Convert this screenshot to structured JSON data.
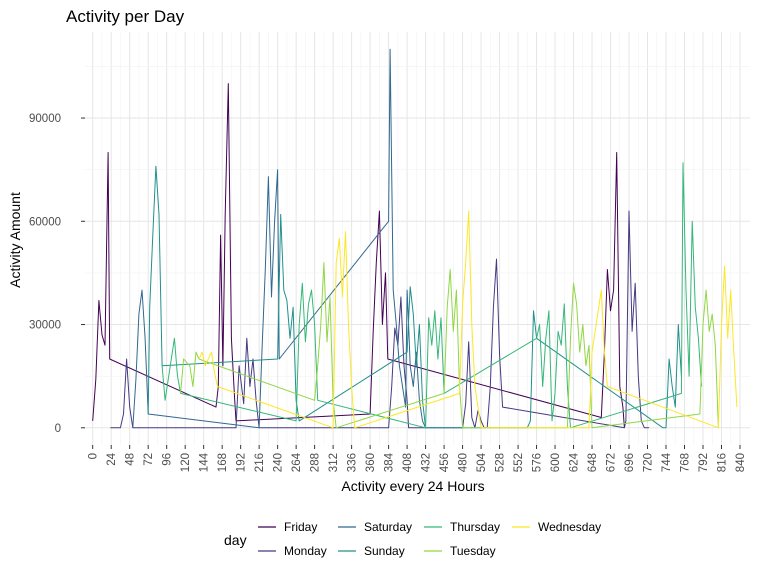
{
  "chart_data": {
    "type": "line",
    "title": "Activity per Day",
    "xlabel": "Activity every 24 Hours",
    "ylabel": "Activity Amount",
    "xlim": [
      -10,
      853
    ],
    "ylim": [
      -5000,
      115000
    ],
    "x_ticks": [
      0,
      24,
      48,
      72,
      96,
      120,
      144,
      168,
      192,
      216,
      240,
      264,
      288,
      312,
      336,
      360,
      384,
      408,
      432,
      456,
      480,
      504,
      528,
      552,
      576,
      600,
      624,
      648,
      672,
      696,
      720,
      744,
      768,
      792,
      816,
      840
    ],
    "y_ticks": [
      0,
      30000,
      60000,
      90000
    ],
    "y_tick_labels": [
      "0",
      "30000",
      "60000",
      "90000"
    ],
    "grid": true,
    "legend": {
      "title": "day",
      "position": "bottom",
      "entries": [
        "Friday",
        "Monday",
        "Saturday",
        "Sunday",
        "Thursday",
        "Tuesday",
        "Wednesday"
      ]
    },
    "series": [
      {
        "name": "Friday",
        "color": "#440154",
        "x": [
          0,
          4,
          8,
          12,
          16,
          20,
          22,
          160,
          163,
          166,
          169,
          172,
          176,
          180,
          184,
          186,
          360,
          364,
          368,
          372,
          376,
          380,
          383,
          660,
          664,
          668,
          672,
          676,
          680,
          684,
          688,
          690
        ],
        "values": [
          2000,
          14000,
          37000,
          27000,
          24000,
          80000,
          20000,
          6000,
          12000,
          56000,
          18000,
          62000,
          100000,
          26000,
          9000,
          2000,
          4000,
          28000,
          48000,
          63000,
          30000,
          45000,
          20000,
          3000,
          22000,
          46000,
          34000,
          40000,
          80000,
          12000,
          6000,
          0
        ]
      },
      {
        "name": "Monday",
        "color": "#443A83",
        "x": [
          23,
          28,
          36,
          40,
          44,
          48,
          52,
          186,
          190,
          196,
          200,
          204,
          208,
          212,
          216,
          384,
          388,
          392,
          396,
          400,
          404,
          408,
          410,
          480,
          484,
          488,
          492,
          496,
          500,
          504,
          508,
          512,
          516,
          520,
          524,
          528,
          532,
          690,
          692,
          696,
          700,
          704,
          708,
          712,
          716,
          720,
          722
        ],
        "values": [
          0,
          0,
          0,
          4000,
          20000,
          6000,
          0,
          0,
          18000,
          7000,
          26000,
          12000,
          20000,
          8000,
          0,
          0,
          12000,
          29000,
          24000,
          38000,
          18000,
          8000,
          0,
          0,
          7000,
          25000,
          3000,
          0,
          5000,
          2000,
          0,
          0,
          12000,
          35000,
          49000,
          21000,
          6000,
          0,
          2000,
          63000,
          28000,
          42000,
          15000,
          2000,
          0,
          0,
          0
        ],
        "extra": []
      },
      {
        "name": "Saturday",
        "color": "#31688E",
        "x": [
          52,
          56,
          60,
          64,
          68,
          72,
          216,
          220,
          224,
          228,
          232,
          236,
          240,
          242,
          384,
          386,
          390,
          394,
          398,
          402,
          406,
          408,
          410,
          412,
          416,
          420,
          424,
          428,
          432
        ],
        "values": [
          0,
          14000,
          33000,
          40000,
          26000,
          4000,
          0,
          24000,
          46000,
          73000,
          38000,
          60000,
          75000,
          20000,
          60000,
          110000,
          40000,
          30000,
          18000,
          12000,
          6000,
          40000,
          30000,
          18000,
          12000,
          22000,
          8000,
          2000,
          0
        ],
        "extra": []
      },
      {
        "name": "Sunday",
        "color": "#21908C",
        "x": [
          72,
          74,
          78,
          82,
          86,
          90,
          240,
          244,
          248,
          252,
          256,
          260,
          264,
          268,
          408,
          412,
          416,
          420,
          424,
          428,
          432,
          552,
          556,
          560,
          564,
          568,
          572,
          576,
          740,
          744,
          748,
          752,
          756,
          760,
          764
        ],
        "values": [
          4000,
          35000,
          56000,
          76000,
          62000,
          18000,
          20000,
          62000,
          40000,
          37000,
          26000,
          35000,
          8000,
          2000,
          22000,
          41000,
          33000,
          18000,
          30000,
          8000,
          0,
          0,
          0,
          0,
          0,
          2000,
          34000,
          26000,
          0,
          0,
          20000,
          12000,
          6000,
          30000,
          15000
        ]
      },
      {
        "name": "Thursday",
        "color": "#35B779",
        "x": [
          90,
          94,
          98,
          102,
          106,
          110,
          114,
          264,
          268,
          272,
          276,
          280,
          284,
          288,
          292,
          432,
          436,
          440,
          444,
          448,
          452,
          456,
          576,
          580,
          584,
          588,
          592,
          596,
          600,
          604,
          608,
          612,
          616,
          620,
          764,
          766,
          770,
          774,
          778,
          782,
          786,
          790
        ],
        "values": [
          18000,
          8000,
          14000,
          20000,
          26000,
          15000,
          10000,
          2000,
          30000,
          42000,
          25000,
          36000,
          40000,
          30000,
          8000,
          0,
          32000,
          24000,
          34000,
          20000,
          32000,
          10000,
          26000,
          30000,
          12000,
          26000,
          34000,
          2000,
          10000,
          28000,
          24000,
          36000,
          12000,
          0,
          10000,
          77000,
          40000,
          15000,
          60000,
          35000,
          26000,
          12000
        ]
      },
      {
        "name": "Tuesday",
        "color": "#8FD744",
        "x": [
          114,
          118,
          122,
          126,
          130,
          134,
          138,
          288,
          292,
          296,
          300,
          304,
          308,
          312,
          316,
          456,
          460,
          464,
          468,
          472,
          476,
          480,
          616,
          620,
          624,
          628,
          632,
          636,
          640,
          644,
          648,
          788,
          792,
          796,
          800,
          804,
          808,
          812
        ],
        "values": [
          10000,
          20000,
          19000,
          18000,
          12000,
          22000,
          20000,
          8000,
          18000,
          30000,
          48000,
          25000,
          38000,
          8000,
          0,
          10000,
          35000,
          46000,
          28000,
          40000,
          12000,
          0,
          0,
          26000,
          42000,
          36000,
          22000,
          30000,
          18000,
          24000,
          0,
          4000,
          30000,
          40000,
          28000,
          33000,
          24000,
          0
        ]
      },
      {
        "name": "Wednesday",
        "color": "#FDE725",
        "x": [
          138,
          142,
          146,
          150,
          154,
          158,
          162,
          312,
          316,
          320,
          324,
          328,
          332,
          336,
          340,
          476,
          480,
          484,
          488,
          492,
          496,
          504,
          644,
          648,
          652,
          656,
          660,
          664,
          668,
          812,
          816,
          820,
          824,
          828,
          832,
          836
        ],
        "values": [
          20000,
          22000,
          18000,
          20000,
          22000,
          16000,
          12000,
          0,
          48000,
          55000,
          38000,
          57000,
          30000,
          12000,
          0,
          10000,
          36000,
          48000,
          63000,
          30000,
          12000,
          0,
          0,
          22000,
          28000,
          34000,
          40000,
          22000,
          12000,
          0,
          30000,
          47000,
          26000,
          40000,
          22000,
          6000
        ]
      }
    ]
  }
}
